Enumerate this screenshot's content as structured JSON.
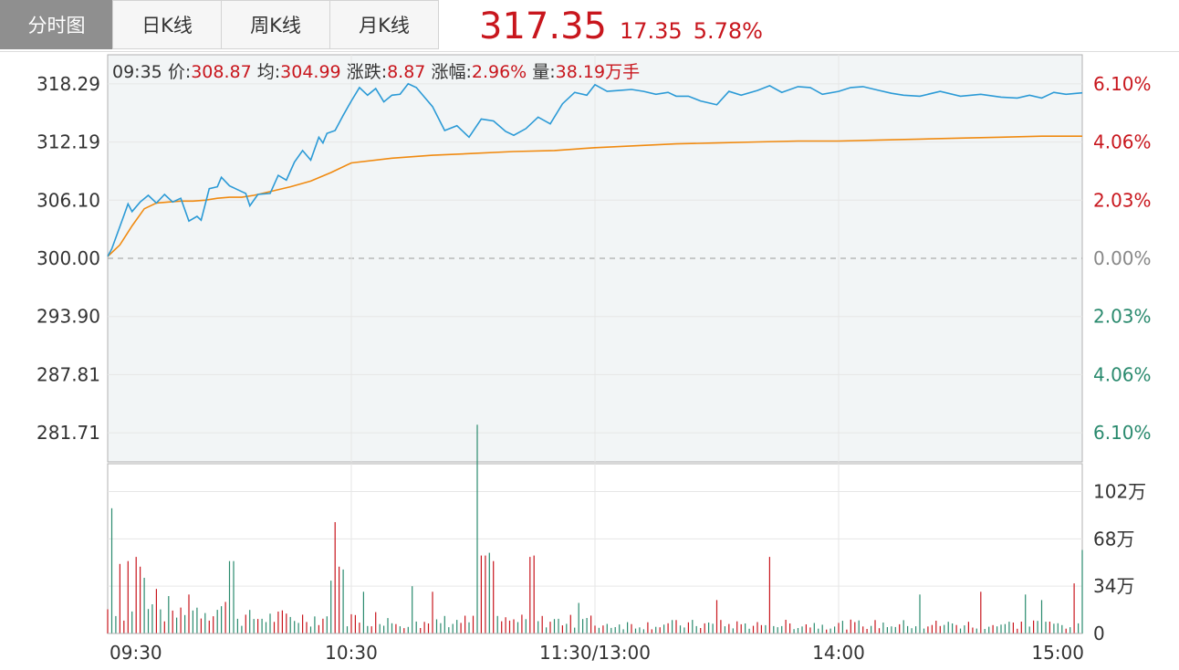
{
  "tabs": [
    {
      "label": "分时图",
      "active": true
    },
    {
      "label": "日K线",
      "active": false
    },
    {
      "label": "周K线",
      "active": false
    },
    {
      "label": "月K线",
      "active": false
    }
  ],
  "headline": {
    "price": "317.35",
    "change": "17.35",
    "change_pct": "5.78%"
  },
  "info": {
    "time": "09:35",
    "price_label": "价:",
    "price": "308.87",
    "avg_label": "均:",
    "avg": "304.99",
    "change_label": "涨跌:",
    "change": "8.87",
    "amplitude_label": "涨幅:",
    "amplitude": "2.96%",
    "volume_label": "量:",
    "volume": "38.19万手"
  },
  "colors": {
    "up": "#c8161d",
    "down": "#2a8a6e",
    "price_line": "#2b9ad6",
    "avg_line": "#f08a10",
    "fill": "#f2f5f6",
    "grid": "#e6e6e6"
  },
  "chart_data": {
    "type": "line",
    "title": "",
    "xlabel": "",
    "ylabel": "",
    "prev_close": 300.0,
    "ylim": [
      278.66,
      321.34
    ],
    "y_ticks_left": [
      "318.29",
      "312.19",
      "306.10",
      "300.00",
      "293.90",
      "287.81",
      "281.71"
    ],
    "y_ticks_right": [
      "6.10%",
      "4.06%",
      "2.03%",
      "0.00%",
      "2.03%",
      "4.06%",
      "6.10%"
    ],
    "x_ticks": [
      "09:30",
      "10:30",
      "11:30/13:00",
      "14:00",
      "15:00"
    ],
    "series": [
      {
        "key": "price",
        "x": [
          0,
          1,
          4,
          5,
          6,
          8,
          10,
          12,
          14,
          16,
          18,
          20,
          22,
          23,
          25,
          27,
          28,
          30,
          32,
          34,
          35,
          37,
          40,
          42,
          44,
          46,
          48,
          50,
          52,
          53,
          54,
          56,
          58,
          60,
          62,
          64,
          66,
          68,
          70,
          72,
          74,
          76,
          78,
          80,
          83,
          86,
          89,
          92,
          95,
          98,
          100,
          103,
          106,
          109,
          112,
          115,
          118,
          120,
          123,
          126,
          129,
          132,
          135,
          138,
          140,
          143,
          146,
          150,
          153,
          156,
          160,
          163,
          166,
          170,
          173,
          176,
          180,
          183,
          186,
          190,
          193,
          196,
          200,
          205,
          210,
          215,
          220,
          224,
          227,
          230,
          233,
          236,
          240
        ],
        "values": [
          300.2,
          301.0,
          304.5,
          305.7,
          304.9,
          305.9,
          306.6,
          305.8,
          306.7,
          305.9,
          306.3,
          303.9,
          304.4,
          304.0,
          307.3,
          307.5,
          308.5,
          307.6,
          307.2,
          306.8,
          305.5,
          306.7,
          306.8,
          308.7,
          308.2,
          310.1,
          311.3,
          310.3,
          312.7,
          312.1,
          313.1,
          313.4,
          315.0,
          316.5,
          317.9,
          317.1,
          317.8,
          316.4,
          317.1,
          317.2,
          318.3,
          317.9,
          316.9,
          315.9,
          313.4,
          313.9,
          312.7,
          314.6,
          314.4,
          313.3,
          312.9,
          313.6,
          314.8,
          314.1,
          316.2,
          317.4,
          317.1,
          318.2,
          317.5,
          317.6,
          317.7,
          317.5,
          317.2,
          317.4,
          317.0,
          317.0,
          316.5,
          316.1,
          317.5,
          317.1,
          317.6,
          318.1,
          317.4,
          318.0,
          317.9,
          317.2,
          317.5,
          317.9,
          318.0,
          317.6,
          317.3,
          317.1,
          317.0,
          317.5,
          317.0,
          317.2,
          316.9,
          316.8,
          317.1,
          316.8,
          317.4,
          317.2,
          317.35
        ]
      },
      {
        "key": "avg",
        "x": [
          0,
          3,
          6,
          9,
          12,
          15,
          18,
          21,
          24,
          27,
          30,
          33,
          36,
          40,
          45,
          50,
          55,
          60,
          70,
          80,
          90,
          100,
          110,
          120,
          130,
          140,
          150,
          160,
          170,
          180,
          190,
          200,
          210,
          220,
          230,
          240
        ],
        "values": [
          300.2,
          301.4,
          303.4,
          305.2,
          305.8,
          305.9,
          306.0,
          306.0,
          306.1,
          306.3,
          306.4,
          306.4,
          306.6,
          307.0,
          307.5,
          308.1,
          309.0,
          310.0,
          310.5,
          310.8,
          311.0,
          311.2,
          311.3,
          311.6,
          311.8,
          312.0,
          312.1,
          312.2,
          312.3,
          312.3,
          312.4,
          312.5,
          312.6,
          312.7,
          312.8,
          312.8
        ]
      }
    ],
    "volume": {
      "y_ticks": [
        "102万",
        "68万",
        "34万",
        "0"
      ],
      "ylim": [
        0,
        122
      ]
    }
  }
}
